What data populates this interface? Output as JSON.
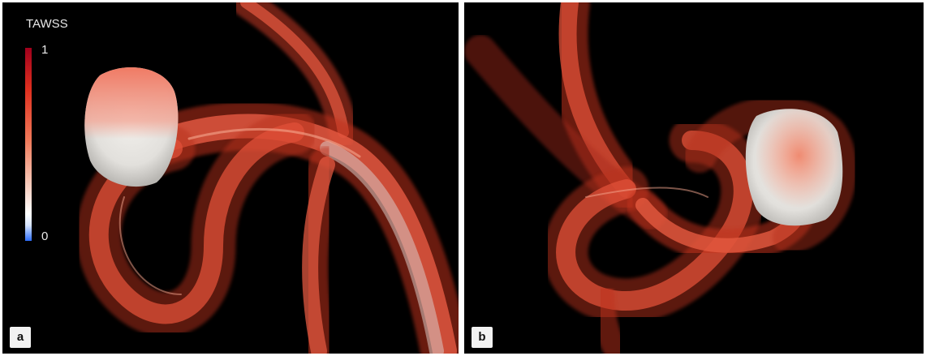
{
  "panel_a": {
    "tag": "a",
    "legend": {
      "title": "TAWSS",
      "max_label": "1",
      "min_label": "0"
    }
  },
  "panel_b": {
    "tag": "b"
  },
  "colors": {
    "streamline": "#e04a32",
    "streamline_light": "#f08a70",
    "aneurysm": "#e8e6e2",
    "background": "#000000"
  }
}
